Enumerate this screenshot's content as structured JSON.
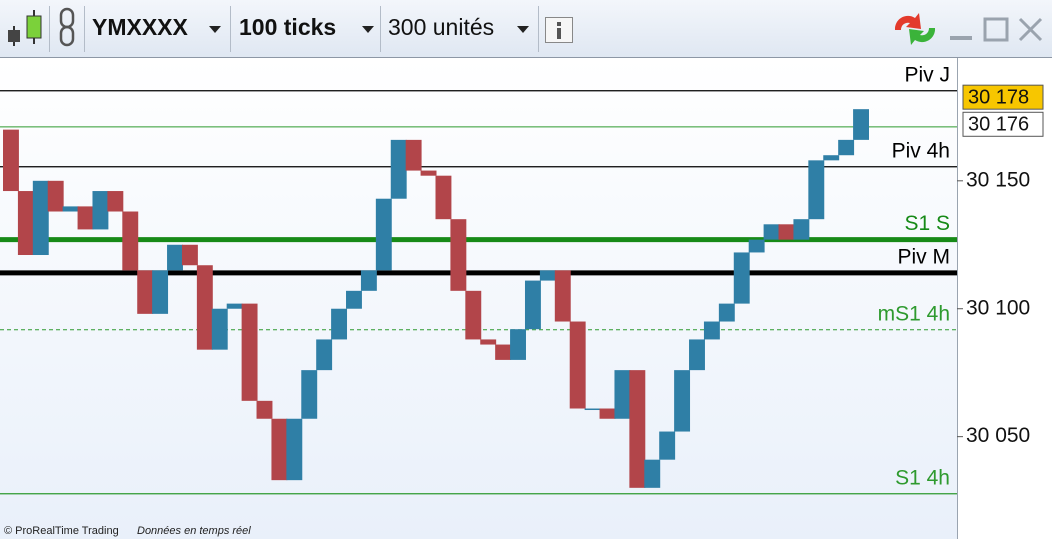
{
  "toolbar": {
    "symbol": "YMXXXX",
    "interval": "100 ticks",
    "units": "300 unités"
  },
  "chart_data": {
    "type": "tickbar",
    "values": [
      30170,
      30146,
      30121,
      30150,
      30138,
      30140,
      30131,
      30146,
      30138,
      30115,
      30098,
      30115,
      30125,
      30117,
      30084,
      30100,
      30102,
      30064,
      30057,
      30033,
      30057,
      30076,
      30088,
      30100,
      30107,
      30115,
      30143,
      30166,
      30154,
      30152,
      30135,
      30107,
      30088,
      30086,
      30080,
      30092,
      30111,
      30115,
      30095,
      30061,
      30061,
      30057,
      30076,
      30030,
      30041,
      30052,
      30076,
      30088,
      30095,
      30102,
      30122,
      30127,
      30133,
      30127,
      30135,
      30158,
      30160,
      30166,
      30178
    ],
    "up_color": "#2f7fa6",
    "down_color": "#b2454a",
    "ylim": [
      30010,
      30198
    ],
    "yticks": [
      {
        "value": 30150,
        "label": "30 150"
      },
      {
        "value": 30100,
        "label": "30 100"
      },
      {
        "value": 30050,
        "label": "30 050"
      }
    ],
    "levels": [
      {
        "label": "Piv J",
        "value": 30185.2,
        "color": "#000000",
        "style": "thin"
      },
      {
        "value": 30171.1,
        "color": "#2e9a2e",
        "style": "thin"
      },
      {
        "label": "Piv 4h",
        "value": 30155.5,
        "color": "#000000",
        "style": "thin"
      },
      {
        "label": "S1 S",
        "value": 30127,
        "color": "#178a17",
        "style": "thick"
      },
      {
        "label": "Piv M",
        "value": 30114,
        "color": "#000000",
        "style": "thick"
      },
      {
        "label": "mS1 4h",
        "value": 30091.8,
        "color": "#2e9a2e",
        "style": "dashed"
      },
      {
        "label": "S1 4h",
        "value": 30027.7,
        "color": "#2e9a2e",
        "style": "thin"
      }
    ],
    "price_labels": [
      {
        "value": 30178,
        "label": "30 178",
        "color": "#f7c600"
      },
      {
        "value": 30176,
        "label": "30 176",
        "color": "#ffffff"
      }
    ]
  },
  "footer": {
    "copyright": "© ProRealTime Trading",
    "status": "Données en temps réel"
  }
}
